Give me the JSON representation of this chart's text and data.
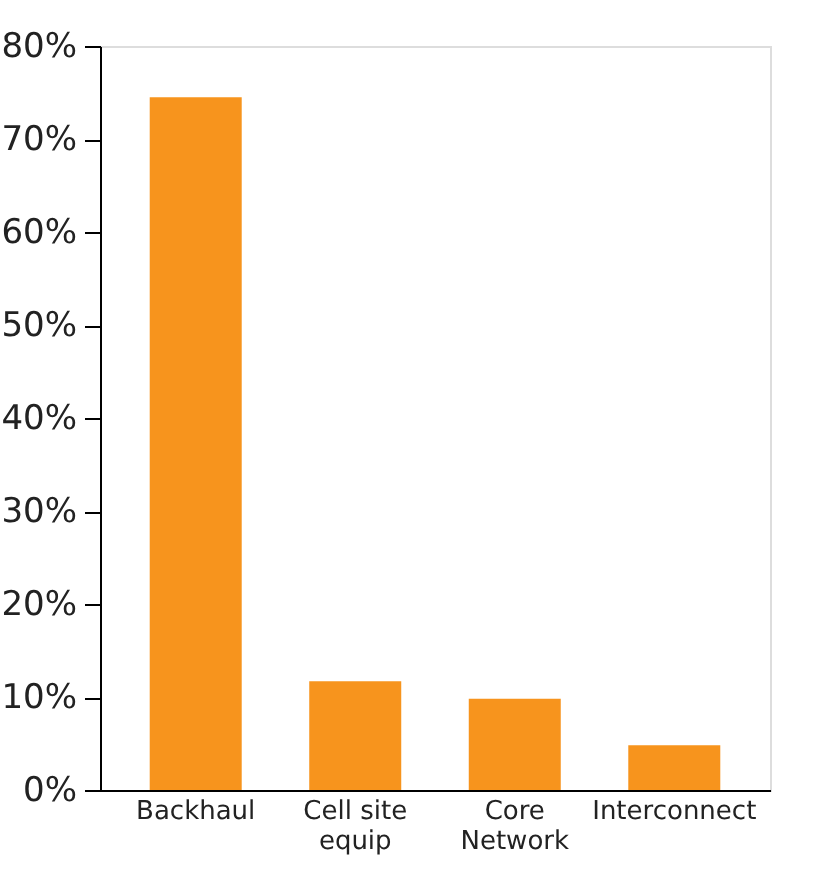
{
  "chart_data": {
    "type": "bar",
    "categories": [
      "Backhaul",
      "Cell site\nequip",
      "Core\nNetwork",
      "Interconnect"
    ],
    "values": [
      74.5,
      11.7,
      9.8,
      4.8
    ],
    "color": "#f7941d",
    "ylim": [
      0,
      80
    ],
    "yticks": [
      {
        "value": 0,
        "label": "0%"
      },
      {
        "value": 10,
        "label": "10%"
      },
      {
        "value": 20,
        "label": "20%"
      },
      {
        "value": 30,
        "label": "30%"
      },
      {
        "value": 40,
        "label": "40%"
      },
      {
        "value": 50,
        "label": "50%"
      },
      {
        "value": 60,
        "label": "60%"
      },
      {
        "value": 70,
        "label": "70%"
      },
      {
        "value": 80,
        "label": "80%"
      }
    ],
    "grid": false
  }
}
